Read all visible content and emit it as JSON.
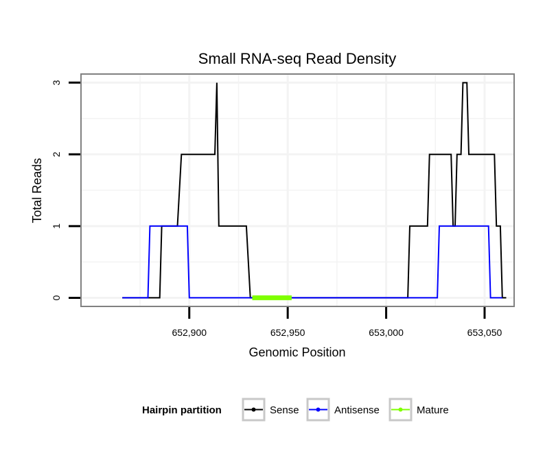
{
  "chart_data": {
    "type": "line",
    "title": "Small RNA-seq Read Density",
    "xlabel": "Genomic Position",
    "ylabel": "Total Reads",
    "xlim": [
      652845,
      653065
    ],
    "ylim": [
      -0.12,
      3.12
    ],
    "x_ticks": [
      652900,
      652950,
      653000,
      653050
    ],
    "x_tick_labels": [
      "652,900",
      "652,950",
      "653,000",
      "653,050"
    ],
    "y_ticks": [
      0,
      1,
      2,
      3
    ],
    "y_tick_labels": [
      "0",
      "1",
      "2",
      "3"
    ],
    "grid": true,
    "legend": {
      "title": "Hairpin partition",
      "position": "bottom",
      "entries": [
        "Sense",
        "Antisense",
        "Mature"
      ]
    },
    "series": [
      {
        "name": "Sense",
        "color": "#000000",
        "x": [
          652866,
          652885,
          652886,
          652894,
          652896,
          652913,
          652914,
          652915,
          652929,
          652931,
          653011,
          653012,
          653021,
          653022,
          653033,
          653034,
          653035,
          653036,
          653038,
          653039,
          653041,
          653042,
          653055,
          653056,
          653058,
          653059,
          653061
        ],
        "y": [
          0,
          0,
          1,
          1,
          2,
          2,
          3,
          1,
          1,
          0,
          0,
          1,
          1,
          2,
          2,
          1,
          1,
          2,
          2,
          3,
          3,
          2,
          2,
          1,
          1,
          0,
          0
        ]
      },
      {
        "name": "Antisense",
        "color": "#0000ff",
        "x": [
          652866,
          652879,
          652880,
          652899,
          652900,
          653026,
          653027,
          653052,
          653053,
          653059
        ],
        "y": [
          0,
          0,
          1,
          1,
          0,
          0,
          1,
          1,
          0,
          0
        ]
      },
      {
        "name": "Mature",
        "color": "#7fff00",
        "x": [
          652932,
          652952
        ],
        "y": [
          0,
          0
        ]
      }
    ]
  }
}
